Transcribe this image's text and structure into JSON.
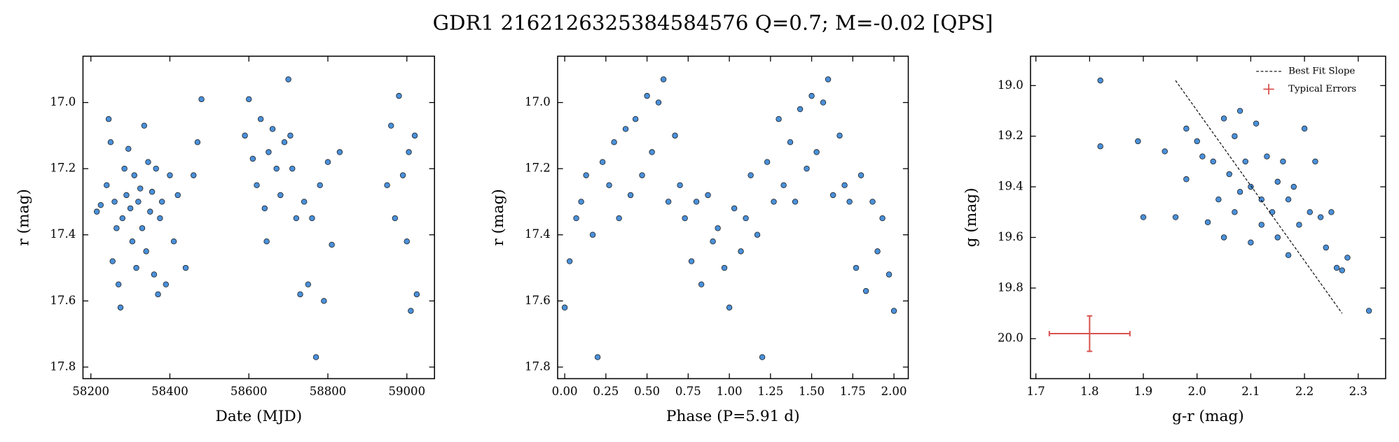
{
  "title": "GDR1 2162126325384584576  Q=0.7; M=-0.02 [QPS]",
  "chart_data": [
    {
      "type": "scatter",
      "xlabel": "Date (MJD)",
      "ylabel": "r (mag)",
      "xlim": [
        58180,
        59070
      ],
      "xticks": [
        58200,
        58400,
        58600,
        58800,
        59000
      ],
      "ylim": [
        16.86,
        17.835
      ],
      "invert_y": true,
      "yticks": [
        {
          "value": 17,
          "label": "17.0"
        },
        17.2,
        17.4,
        17.6,
        17.8
      ],
      "series": [
        {
          "color": "#4a90d9",
          "x": [
            58215,
            58225,
            58240,
            58245,
            58250,
            58255,
            58260,
            58265,
            58270,
            58275,
            58280,
            58285,
            58290,
            58295,
            58300,
            58305,
            58310,
            58315,
            58320,
            58325,
            58330,
            58335,
            58340,
            58345,
            58350,
            58355,
            58360,
            58365,
            58370,
            58375,
            58380,
            58390,
            58400,
            58410,
            58420,
            58440,
            58460,
            58470,
            58480,
            58590,
            58600,
            58610,
            58620,
            58630,
            58640,
            58645,
            58650,
            58660,
            58670,
            58680,
            58690,
            58700,
            58705,
            58710,
            58720,
            58730,
            58740,
            58750,
            58760,
            58770,
            58780,
            58790,
            58800,
            58810,
            58830,
            58950,
            58960,
            58970,
            58980,
            58990,
            59000,
            59005,
            59010,
            59020,
            59025
          ],
          "values": [
            17.33,
            17.31,
            17.25,
            17.05,
            17.12,
            17.48,
            17.3,
            17.38,
            17.55,
            17.62,
            17.35,
            17.2,
            17.28,
            17.14,
            17.32,
            17.42,
            17.22,
            17.5,
            17.3,
            17.26,
            17.38,
            17.07,
            17.45,
            17.18,
            17.33,
            17.27,
            17.52,
            17.2,
            17.58,
            17.35,
            17.3,
            17.55,
            17.22,
            17.42,
            17.28,
            17.5,
            17.22,
            17.12,
            16.99,
            17.1,
            16.99,
            17.17,
            17.25,
            17.05,
            17.32,
            17.42,
            17.15,
            17.08,
            17.2,
            17.28,
            17.12,
            16.93,
            17.1,
            17.2,
            17.35,
            17.58,
            17.3,
            17.55,
            17.35,
            17.77,
            17.25,
            17.6,
            17.18,
            17.43,
            17.15,
            17.25,
            17.07,
            17.35,
            16.98,
            17.22,
            17.42,
            17.15,
            17.63,
            17.1,
            17.58
          ]
        }
      ]
    },
    {
      "type": "scatter",
      "xlabel": "Phase (P=5.91 d)",
      "ylabel": "r (mag)",
      "xlim": [
        -0.043,
        2.087
      ],
      "xticks": [
        {
          "value": 0,
          "label": "0.00"
        },
        0.25,
        {
          "value": 0.5,
          "label": "0.50"
        },
        0.75,
        {
          "value": 1,
          "label": "1.00"
        },
        1.25,
        {
          "value": 1.5,
          "label": "1.50"
        },
        1.75,
        {
          "value": 2,
          "label": "2.00"
        }
      ],
      "ylim": [
        16.86,
        17.835
      ],
      "invert_y": true,
      "yticks": [
        {
          "value": 17,
          "label": "17.0"
        },
        17.2,
        17.4,
        17.6,
        17.8
      ],
      "series": [
        {
          "color": "#4a90d9",
          "x": [
            0.0,
            0.03,
            0.07,
            0.1,
            0.13,
            0.17,
            0.2,
            0.23,
            0.27,
            0.3,
            0.33,
            0.37,
            0.4,
            0.43,
            0.47,
            0.5,
            0.53,
            0.57,
            0.6,
            0.63,
            0.67,
            0.7,
            0.73,
            0.77,
            0.8,
            0.83,
            0.87,
            0.9,
            0.93,
            0.97,
            1.0,
            1.03,
            1.07,
            1.1,
            1.13,
            1.17,
            1.2,
            1.23,
            1.27,
            1.3,
            1.33,
            1.37,
            1.4,
            1.43,
            1.47,
            1.5,
            1.53,
            1.57,
            1.6,
            1.63,
            1.67,
            1.7,
            1.73,
            1.77,
            1.8,
            1.83,
            1.87,
            1.9,
            1.93,
            1.97,
            2.0
          ],
          "values": [
            17.62,
            17.48,
            17.35,
            17.3,
            17.22,
            17.4,
            17.77,
            17.18,
            17.25,
            17.12,
            17.35,
            17.08,
            17.28,
            17.05,
            17.22,
            16.98,
            17.15,
            17.0,
            16.93,
            17.3,
            17.1,
            17.25,
            17.35,
            17.48,
            17.3,
            17.55,
            17.28,
            17.42,
            17.38,
            17.5,
            17.62,
            17.32,
            17.45,
            17.35,
            17.22,
            17.4,
            17.77,
            17.18,
            17.3,
            17.05,
            17.25,
            17.12,
            17.3,
            17.02,
            17.2,
            16.98,
            17.15,
            17.0,
            16.93,
            17.28,
            17.1,
            17.25,
            17.3,
            17.5,
            17.22,
            17.57,
            17.3,
            17.45,
            17.35,
            17.52,
            17.63
          ]
        }
      ]
    },
    {
      "type": "scatter",
      "xlabel": "g-r (mag)",
      "ylabel": "g (mag)",
      "xlim": [
        1.69,
        2.351
      ],
      "xticks": [
        1.7,
        1.8,
        1.9,
        {
          "value": 2,
          "label": "2.0"
        },
        2.1,
        2.2,
        2.3
      ],
      "ylim": [
        18.884,
        20.158
      ],
      "invert_y": true,
      "yticks": [
        {
          "value": 19,
          "label": "19.0"
        },
        19.2,
        19.4,
        19.6,
        19.8,
        {
          "value": 20,
          "label": "20.0"
        }
      ],
      "legend": "upper right",
      "series": [
        {
          "color": "#4a90d9",
          "x": [
            1.82,
            1.82,
            1.89,
            1.9,
            1.94,
            1.96,
            1.98,
            1.98,
            2.0,
            2.01,
            2.02,
            2.03,
            2.04,
            2.05,
            2.05,
            2.06,
            2.07,
            2.07,
            2.08,
            2.08,
            2.09,
            2.1,
            2.1,
            2.11,
            2.12,
            2.12,
            2.13,
            2.14,
            2.15,
            2.15,
            2.16,
            2.17,
            2.17,
            2.18,
            2.19,
            2.2,
            2.21,
            2.22,
            2.23,
            2.24,
            2.25,
            2.26,
            2.27,
            2.28,
            2.32
          ],
          "values": [
            18.98,
            19.24,
            19.22,
            19.52,
            19.26,
            19.52,
            19.17,
            19.37,
            19.22,
            19.28,
            19.54,
            19.3,
            19.45,
            19.13,
            19.6,
            19.35,
            19.2,
            19.5,
            19.1,
            19.42,
            19.3,
            19.62,
            19.4,
            19.15,
            19.45,
            19.55,
            19.28,
            19.5,
            19.38,
            19.6,
            19.3,
            19.45,
            19.67,
            19.4,
            19.55,
            19.17,
            19.5,
            19.3,
            19.52,
            19.64,
            19.5,
            19.72,
            19.73,
            19.68,
            19.89
          ]
        },
        {
          "name": "Best Fit Slope",
          "kind": "line",
          "color": "#000000",
          "x": [
            1.96,
            2.27
          ],
          "values": [
            18.98,
            19.9
          ]
        },
        {
          "name": "Typical Errors",
          "kind": "errorbar",
          "color": "#d9534f",
          "x": [
            1.8
          ],
          "values": [
            19.98
          ],
          "xerr": [
            0.075
          ],
          "yerr": [
            0.07
          ]
        }
      ]
    }
  ]
}
